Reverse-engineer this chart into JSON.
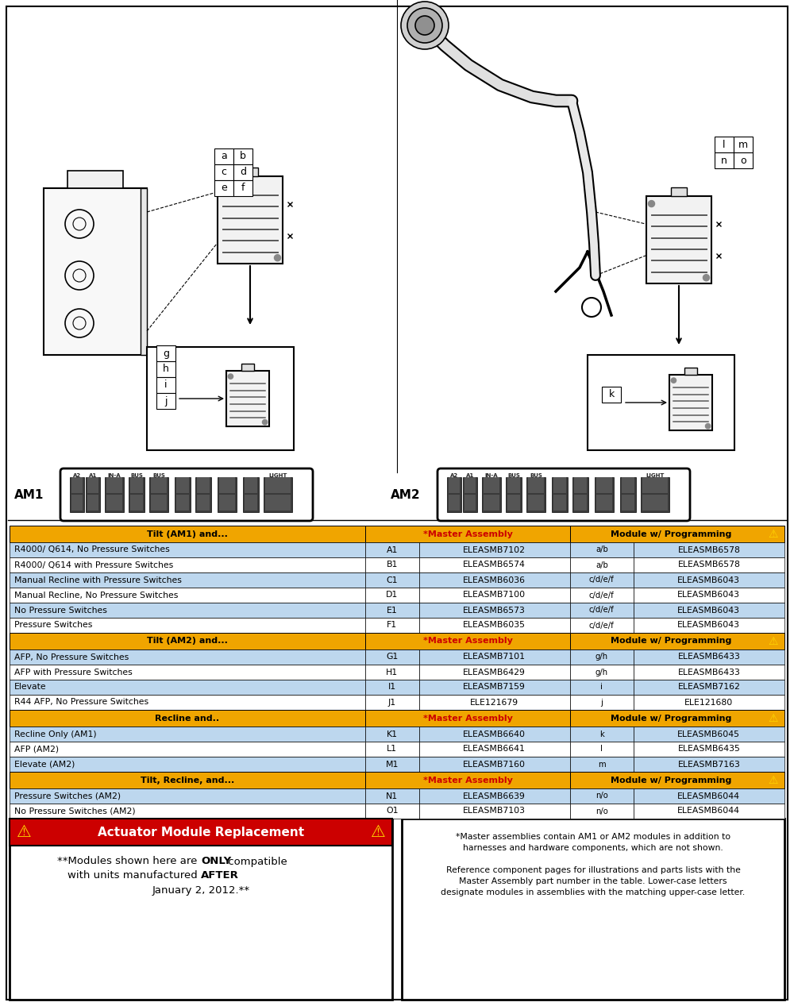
{
  "fig_width": 10.0,
  "fig_height": 12.67,
  "bg_color": "#ffffff",
  "table_header_orange": "#F0A500",
  "table_row_blue": "#BDD7EE",
  "table_row_white": "#ffffff",
  "warning_red": "#CC0000",
  "warning_yellow": "#FFD700",
  "sections": [
    {
      "header": "Tilt (AM1) and...",
      "rows": [
        {
          "desc": "R4000/ Q614, No Pressure Switches",
          "code": "A1",
          "master": "ELEASMB7102",
          "module_code": "a/b",
          "module": "ELEASMB6578",
          "row_color": "#BDD7EE"
        },
        {
          "desc": "R4000/ Q614 with Pressure Switches",
          "code": "B1",
          "master": "ELEASMB6574",
          "module_code": "a/b",
          "module": "ELEASMB6578",
          "row_color": "#ffffff"
        },
        {
          "desc": "Manual Recline with Pressure Switches",
          "code": "C1",
          "master": "ELEASMB6036",
          "module_code": "c/d/e/f",
          "module": "ELEASMB6043",
          "row_color": "#BDD7EE"
        },
        {
          "desc": "Manual Recline, No Pressure Switches",
          "code": "D1",
          "master": "ELEASMB7100",
          "module_code": "c/d/e/f",
          "module": "ELEASMB6043",
          "row_color": "#ffffff"
        },
        {
          "desc": "No Pressure Switches",
          "code": "E1",
          "master": "ELEASMB6573",
          "module_code": "c/d/e/f",
          "module": "ELEASMB6043",
          "row_color": "#BDD7EE"
        },
        {
          "desc": "Pressure Switches",
          "code": "F1",
          "master": "ELEASMB6035",
          "module_code": "c/d/e/f",
          "module": "ELEASMB6043",
          "row_color": "#ffffff"
        }
      ]
    },
    {
      "header": "Tilt (AM2) and...",
      "rows": [
        {
          "desc": "AFP, No Pressure Switches",
          "code": "G1",
          "master": "ELEASMB7101",
          "module_code": "g/h",
          "module": "ELEASMB6433",
          "row_color": "#BDD7EE"
        },
        {
          "desc": "AFP with Pressure Switches",
          "code": "H1",
          "master": "ELEASMB6429",
          "module_code": "g/h",
          "module": "ELEASMB6433",
          "row_color": "#ffffff"
        },
        {
          "desc": "Elevate",
          "code": "I1",
          "master": "ELEASMB7159",
          "module_code": "i",
          "module": "ELEASMB7162",
          "row_color": "#BDD7EE"
        },
        {
          "desc": "R44 AFP, No Pressure Switches",
          "code": "J1",
          "master": "ELE121679",
          "module_code": "j",
          "module": "ELE121680",
          "row_color": "#ffffff"
        }
      ]
    },
    {
      "header": "Recline and..",
      "rows": [
        {
          "desc": "Recline Only (AM1)",
          "code": "K1",
          "master": "ELEASMB6640",
          "module_code": "k",
          "module": "ELEASMB6045",
          "row_color": "#BDD7EE"
        },
        {
          "desc": "AFP (AM2)",
          "code": "L1",
          "master": "ELEASMB6641",
          "module_code": "l",
          "module": "ELEASMB6435",
          "row_color": "#ffffff"
        },
        {
          "desc": "Elevate (AM2)",
          "code": "M1",
          "master": "ELEASMB7160",
          "module_code": "m",
          "module": "ELEASMB7163",
          "row_color": "#BDD7EE"
        }
      ]
    },
    {
      "header": "Tilt, Recline, and...",
      "rows": [
        {
          "desc": "Pressure Switches (AM2)",
          "code": "N1",
          "master": "ELEASMB6639",
          "module_code": "n/o",
          "module": "ELEASMB6044",
          "row_color": "#BDD7EE"
        },
        {
          "desc": "No Pressure Switches (AM2)",
          "code": "O1",
          "master": "ELEASMB7103",
          "module_code": "n/o",
          "module": "ELEASMB6044",
          "row_color": "#ffffff"
        }
      ]
    }
  ],
  "note_right_lines": [
    "*Master assemblies contain AM1 or AM2 modules in addition to",
    "harnesses and hardware components, which are not shown.",
    "",
    "Reference component pages for illustrations and parts lists with the",
    "Master Assembly part number in the table. Lower-case letters",
    "designate modules in assemblies with the matching upper-case letter."
  ],
  "letter_grid_left_top": [
    [
      "a",
      "b"
    ],
    [
      "c",
      "d"
    ],
    [
      "e",
      "f"
    ]
  ],
  "letter_grid_left_bottom": [
    [
      "g"
    ],
    [
      "h"
    ],
    [
      "i"
    ],
    [
      "j"
    ]
  ],
  "letter_grid_right_top": [
    [
      "l",
      "m"
    ],
    [
      "n",
      "o"
    ]
  ],
  "letter_grid_right_bottom": [
    [
      "k"
    ]
  ]
}
